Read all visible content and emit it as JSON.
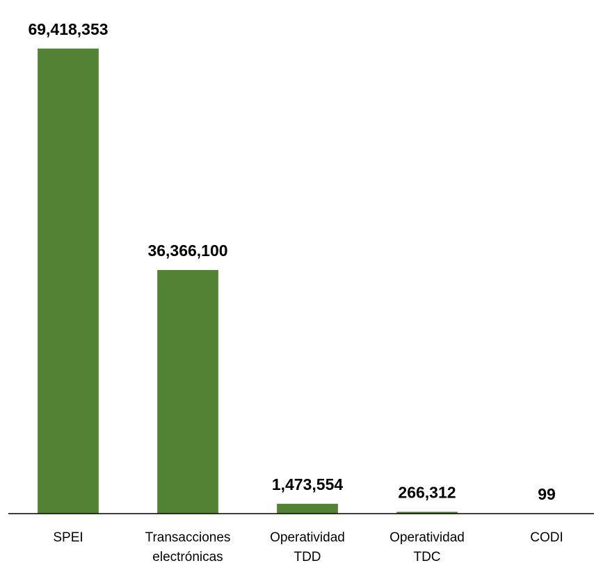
{
  "chart_data": {
    "type": "bar",
    "categories": [
      "SPEI",
      "Transacciones electrónicas",
      "Operatividad TDD",
      "Operatividad TDC",
      "CODI"
    ],
    "values": [
      69418353,
      36366100,
      1473554,
      266312,
      99
    ],
    "value_labels": [
      "69,418,353",
      "36,366,100",
      "1,473,554",
      "266,312",
      "99"
    ],
    "color": "#548235",
    "ylim": [
      0,
      75000000
    ]
  }
}
